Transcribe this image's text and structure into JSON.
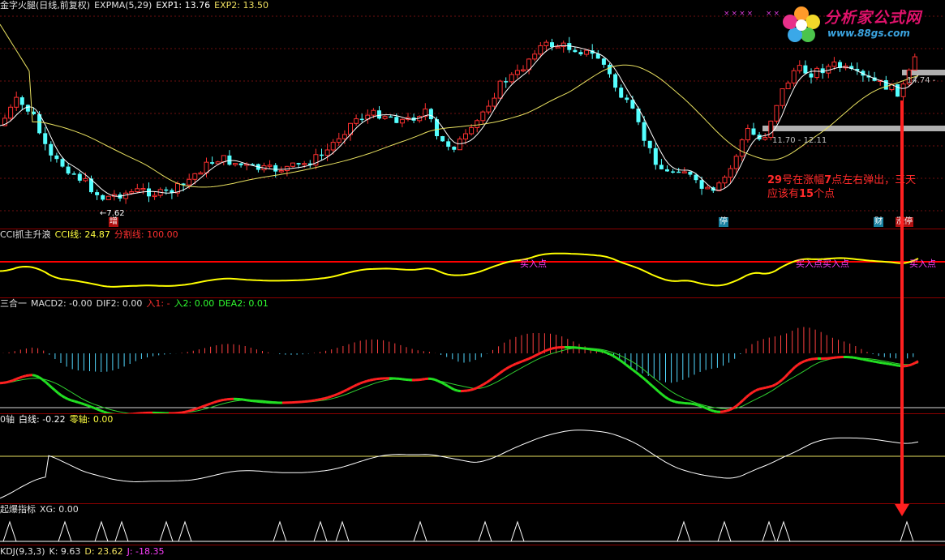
{
  "panes": {
    "main": {
      "title": "金字火腿(日线,前复权)",
      "indicator": "EXPMA(5,29)",
      "exp1": "EXP1: 13.76",
      "exp2": "EXP2: 13.50",
      "low_label": "←7.62",
      "price_label_right": "14.74 -",
      "range_label": "11.70 - 12.11",
      "tag_zeng": "增",
      "tag_ting": "停",
      "tag_cai": "财",
      "tag_zhangting": "涨停",
      "annotation_line1_a": "29",
      "annotation_line1_b": "号在涨幅",
      "annotation_line1_c": "7",
      "annotation_line1_d": "点左右弹出，三天",
      "annotation_line2_a": "应该有",
      "annotation_line2_b": "15",
      "annotation_line2_c": "个点",
      "xmarks_left": "××××",
      "xmarks_right": "××"
    },
    "cci": {
      "title": "CCI抓主升浪",
      "cci": "CCI线: 24.87",
      "split": "分割线: 100.00",
      "buy1": "买入点",
      "buy2": "买入点买入点",
      "buy3": "买入点"
    },
    "macd": {
      "title": "三合一",
      "macd2": "MACD2: -0.00",
      "dif2": "DIF2: 0.00",
      "in1": "入1: -",
      "in2": "入2: 0.00",
      "dea2": "DEA2: 0.01"
    },
    "zero": {
      "title": "0轴",
      "white": "白线: -0.22",
      "zero": "零轴: 0.00"
    },
    "burst": {
      "title": "起爆指标",
      "xg": "XG: 0.00"
    },
    "kdj": {
      "title": "KDJ(9,3,3)",
      "k": "K: 9.63",
      "d": "D: 23.62",
      "j": "J: -18.35"
    }
  },
  "logo": {
    "name": "分析家公式网",
    "url": "www.88gs.com"
  },
  "colors": {
    "up": "#ff3030",
    "down": "#54ffff",
    "exp1": "#ffffff",
    "exp2": "#e8e060",
    "cci": "#ffff00",
    "split": "#ff0000",
    "macd_up": "#ff2020",
    "macd_down": "#22e022",
    "hist_pos": "#ff4040",
    "hist_neg": "#52d8ff"
  },
  "chart_data": [
    {
      "type": "candlestick",
      "title": "金字火腿(日线,前复权)",
      "series": [
        {
          "name": "EXP1",
          "last": 13.76
        },
        {
          "name": "EXP2",
          "last": 13.5
        }
      ],
      "annotations": [
        "←7.62",
        "11.70 - 12.11",
        "14.74 -"
      ]
    },
    {
      "type": "line",
      "title": "CCI抓主升浪",
      "series": [
        {
          "name": "CCI线",
          "last": 24.87
        },
        {
          "name": "分割线",
          "last": 100.0
        }
      ]
    },
    {
      "type": "line",
      "title": "三合一",
      "series": [
        {
          "name": "MACD2",
          "last": -0.0
        },
        {
          "name": "DIF2",
          "last": 0.0
        },
        {
          "name": "DEA2",
          "last": 0.01
        }
      ]
    },
    {
      "type": "line",
      "title": "0轴",
      "series": [
        {
          "name": "白线",
          "last": -0.22
        },
        {
          "name": "零轴",
          "last": 0.0
        }
      ]
    },
    {
      "type": "line",
      "title": "起爆指标",
      "series": [
        {
          "name": "XG",
          "last": 0.0
        }
      ]
    },
    {
      "type": "line",
      "title": "KDJ(9,3,3)",
      "series": [
        {
          "name": "K",
          "last": 9.63
        },
        {
          "name": "D",
          "last": 23.62
        },
        {
          "name": "J",
          "last": -18.35
        }
      ]
    }
  ]
}
